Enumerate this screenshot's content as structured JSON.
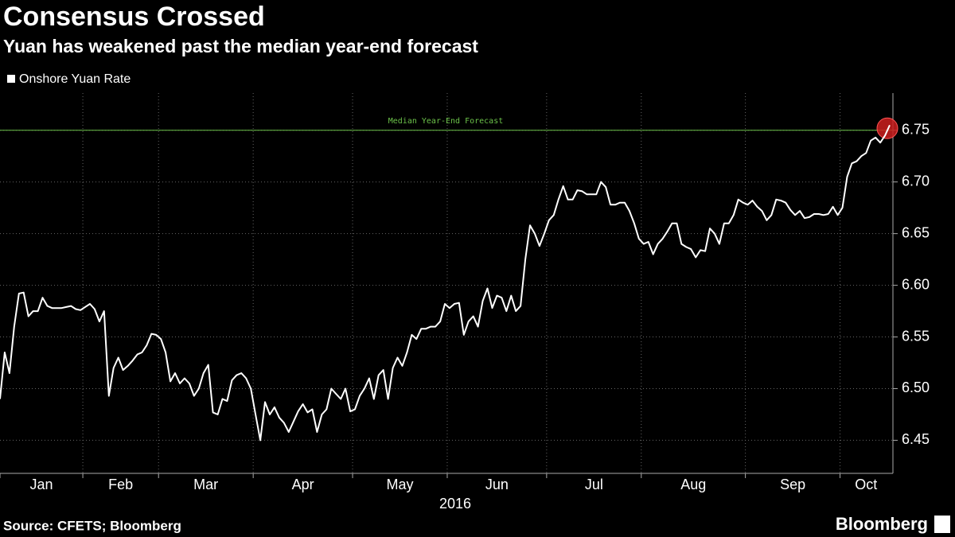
{
  "chart_data": {
    "type": "line",
    "title": "Consensus Crossed",
    "subtitle": "Yuan has weakened past the median year-end forecast",
    "source": "Source: CFETS; Bloomberg",
    "brand": "Bloomberg",
    "xlabel": "2016",
    "categories": [
      "Jan",
      "Feb",
      "Mar",
      "Apr",
      "May",
      "Jun",
      "Jul",
      "Aug",
      "Sep",
      "Oct"
    ],
    "series": [
      {
        "name": "Onshore Yuan Rate",
        "color": "#ffffff",
        "values": [
          [
            6.49,
            6.535,
            6.515,
            6.56,
            6.592,
            6.593,
            6.57,
            6.575,
            6.575,
            6.588,
            6.58,
            6.578,
            6.578,
            6.578,
            6.579,
            6.58,
            6.577,
            6.576
          ],
          [
            6.579,
            6.582,
            6.577,
            6.565,
            6.575,
            6.493,
            6.52,
            6.53,
            6.518,
            6.522,
            6.527,
            6.533,
            6.535,
            6.542,
            6.553,
            6.552
          ],
          [
            6.548,
            6.535,
            6.507,
            6.515,
            6.505,
            6.51,
            6.505,
            6.493,
            6.5,
            6.515,
            6.523,
            6.477,
            6.475,
            6.49,
            6.488,
            6.508,
            6.513,
            6.515,
            6.51,
            6.5
          ],
          [
            6.475,
            6.45,
            6.487,
            6.475,
            6.482,
            6.472,
            6.467,
            6.458,
            6.468,
            6.478,
            6.485,
            6.477,
            6.48,
            6.458,
            6.475,
            6.48,
            6.5,
            6.495,
            6.49,
            6.5,
            6.478
          ],
          [
            6.48,
            6.493,
            6.5,
            6.51,
            6.49,
            6.513,
            6.518,
            6.49,
            6.52,
            6.53,
            6.522,
            6.535,
            6.552,
            6.548,
            6.558,
            6.558,
            6.56,
            6.56,
            6.565,
            6.582
          ],
          [
            6.578,
            6.582,
            6.583,
            6.552,
            6.565,
            6.57,
            6.56,
            6.585,
            6.597,
            6.578,
            6.59,
            6.588,
            6.575,
            6.59,
            6.575,
            6.58,
            6.625,
            6.658,
            6.65,
            6.638,
            6.65
          ],
          [
            6.663,
            6.668,
            6.683,
            6.696,
            6.683,
            6.683,
            6.692,
            6.691,
            6.688,
            6.688,
            6.688,
            6.7,
            6.695,
            6.678,
            6.678,
            6.68,
            6.68,
            6.672,
            6.66,
            6.645
          ],
          [
            6.64,
            6.642,
            6.63,
            6.64,
            6.645,
            6.652,
            6.66,
            6.66,
            6.64,
            6.637,
            6.635,
            6.627,
            6.634,
            6.633,
            6.655,
            6.65,
            6.64,
            6.66,
            6.66,
            6.668,
            6.683,
            6.68
          ],
          [
            6.678,
            6.682,
            6.676,
            6.672,
            6.663,
            6.668,
            6.683,
            6.682,
            6.68,
            6.673,
            6.668,
            6.672,
            6.665,
            6.666,
            6.669,
            6.669,
            6.668,
            6.669,
            6.676,
            6.668
          ],
          [
            6.675,
            6.705,
            6.718,
            6.72,
            6.725,
            6.728,
            6.74,
            6.743,
            6.738,
            6.745,
            6.755
          ]
        ]
      }
    ],
    "reference_line": {
      "value": 6.75,
      "label": "Median Year-End Forecast",
      "color": "#6cc24a"
    },
    "highlight_color": "#cc1f1f",
    "ylim": [
      6.418,
      6.786
    ],
    "yticks": [
      6.45,
      {
        "value": 6.5,
        "label": "6.50"
      },
      6.55,
      {
        "value": 6.6,
        "label": "6.60"
      },
      6.65,
      {
        "value": 6.7,
        "label": "6.70"
      },
      6.75
    ],
    "grid": true,
    "y_axis_side": "right"
  }
}
